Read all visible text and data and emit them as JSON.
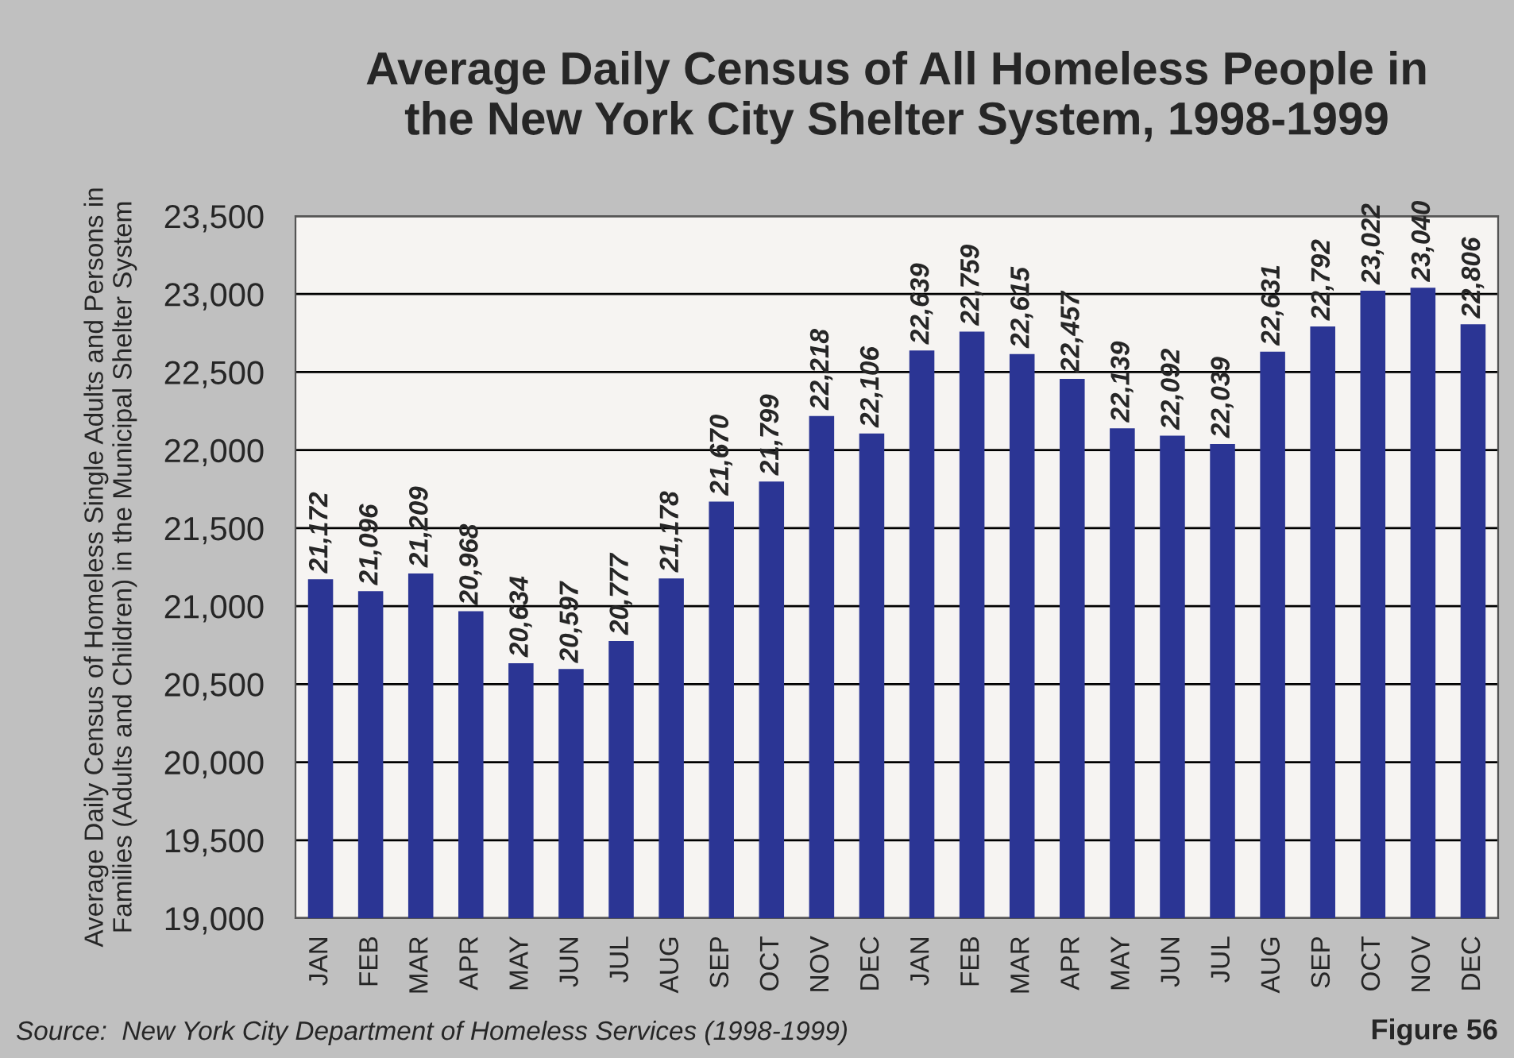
{
  "chart_data": {
    "type": "bar",
    "title": "Average Daily Census of All Homeless People in\nthe New York City Shelter System, 1998-1999",
    "ylabel": "Average Daily Census of Homeless Single Adults and Persons in\nFamilies (Adults and Children) in the Municipal Shelter System",
    "categories": [
      "JAN",
      "FEB",
      "MAR",
      "APR",
      "MAY",
      "JUN",
      "JUL",
      "AUG",
      "SEP",
      "OCT",
      "NOV",
      "DEC",
      "JAN",
      "FEB",
      "MAR",
      "APR",
      "MAY",
      "JUN",
      "JUL",
      "AUG",
      "SEP",
      "OCT",
      "NOV",
      "DEC"
    ],
    "values": [
      21172,
      21096,
      21209,
      20968,
      20634,
      20597,
      20777,
      21178,
      21670,
      21799,
      22218,
      22106,
      22639,
      22759,
      22615,
      22457,
      22139,
      22092,
      22039,
      22631,
      22792,
      23022,
      23040,
      22806
    ],
    "value_labels": [
      "21,172",
      "21,096",
      "21,209",
      "20,968",
      "20,634",
      "20,597",
      "20,777",
      "21,178",
      "21,670",
      "21,799",
      "22,218",
      "22,106",
      "22,639",
      "22,759",
      "22,615",
      "22,457",
      "22,139",
      "22,092",
      "22,039",
      "22,631",
      "22,792",
      "23,022",
      "23,040",
      "22,806"
    ],
    "color": "#2b3594",
    "ylim": [
      19000,
      23500
    ],
    "yticks": [
      {
        "value": 19000,
        "label": "19,000"
      },
      {
        "value": 19500,
        "label": "19,500"
      },
      {
        "value": 20000,
        "label": "20,000"
      },
      {
        "value": 20500,
        "label": "20,500"
      },
      {
        "value": 21000,
        "label": "21,000"
      },
      {
        "value": 21500,
        "label": "21,500"
      },
      {
        "value": 22000,
        "label": "22,000"
      },
      {
        "value": 22500,
        "label": "22,500"
      },
      {
        "value": 23000,
        "label": "23,000"
      },
      {
        "value": 23500,
        "label": "23,500"
      }
    ],
    "grid": "y",
    "annotations": [
      "Source:  New York City Department of Homeless Services (1998-1999)",
      "Figure 56"
    ]
  }
}
